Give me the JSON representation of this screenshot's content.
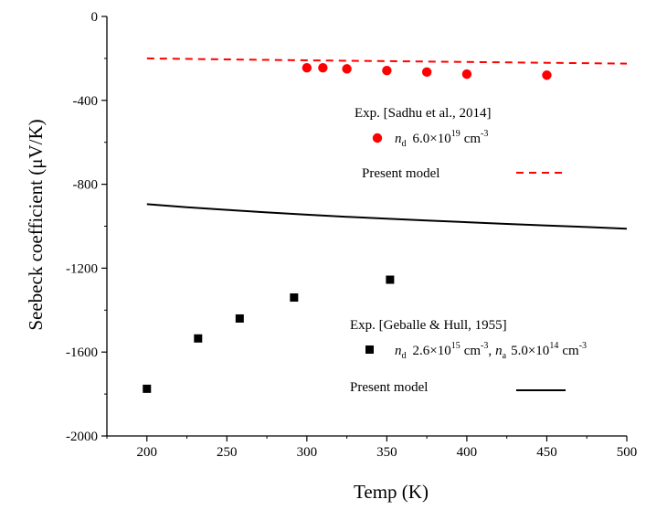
{
  "chart_data": {
    "type": "scatter",
    "xlabel": "Temp (K)",
    "ylabel": "Seebeck coefficient (μV/K)",
    "xlim": [
      175,
      500
    ],
    "ylim": [
      -2000,
      0
    ],
    "x_ticks": [
      200,
      250,
      300,
      350,
      400,
      450,
      500
    ],
    "y_ticks": [
      0,
      -400,
      -800,
      -1200,
      -1600,
      -2000
    ],
    "grid": false,
    "colors": {
      "red": "#ff0000",
      "black": "#000000"
    },
    "series": [
      {
        "name": "Exp. [Sadhu et al., 2014]",
        "kind": "points",
        "marker": "circle",
        "color": "#ff0000",
        "x": [
          300,
          310,
          325,
          350,
          375,
          400,
          450
        ],
        "y": [
          -245,
          -245,
          -250,
          -258,
          -265,
          -275,
          -280
        ]
      },
      {
        "name": "Present model",
        "kind": "line",
        "dash": "dashed",
        "color": "#ff0000",
        "x": [
          200,
          250,
          300,
          350,
          400,
          450,
          500
        ],
        "y": [
          -200,
          -205,
          -209,
          -213,
          -217,
          -221,
          -225
        ]
      },
      {
        "name": "Exp. [Geballe & Hull, 1955]",
        "kind": "points",
        "marker": "square",
        "color": "#000000",
        "x": [
          200,
          232,
          258,
          292,
          352
        ],
        "y": [
          -1775,
          -1535,
          -1440,
          -1340,
          -1255
        ]
      },
      {
        "name": "Present model",
        "kind": "line",
        "dash": "solid",
        "color": "#000000",
        "x": [
          200,
          225,
          250,
          275,
          300,
          325,
          350,
          375,
          400,
          425,
          450,
          475,
          500
        ],
        "y": [
          -895,
          -910,
          -922,
          -934,
          -945,
          -955,
          -964,
          -973,
          -981,
          -989,
          -997,
          -1004,
          -1012
        ]
      }
    ],
    "legend": {
      "group1": {
        "title": "Exp. [Sadhu et al., 2014]",
        "n_symbol": "n",
        "n_sub": "d",
        "n_value": "6.0×10",
        "n_exp": "19",
        "n_unit": "cm",
        "n_unit_exp": "-3",
        "model_label": "Present model"
      },
      "group2": {
        "title": "Exp. [Geballe & Hull, 1955]",
        "nd_symbol": "n",
        "nd_sub": "d",
        "nd_value": "2.6×10",
        "nd_exp": "15",
        "nd_unit": "cm",
        "nd_unit_exp": "-3",
        "sep": ",",
        "na_symbol": "n",
        "na_sub": "a",
        "na_value": "5.0×10",
        "na_exp": "14",
        "na_unit": "cm",
        "na_unit_exp": "-3",
        "model_label": "Present model"
      }
    }
  }
}
